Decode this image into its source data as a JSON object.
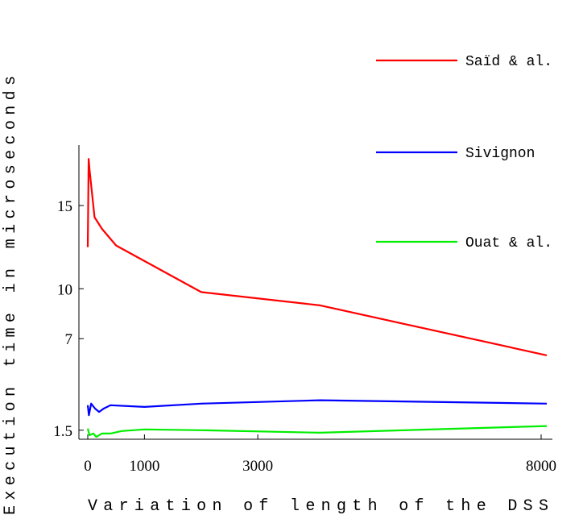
{
  "chart_data": {
    "type": "line",
    "xlabel": "Variation of length of the DSS",
    "ylabel": "Execution time in microseconds",
    "x_ticks": [
      0,
      1000,
      3000,
      8000
    ],
    "y_ticks": [
      1.5,
      7,
      10,
      15
    ],
    "xlim": [
      0,
      8100
    ],
    "ylim": [
      0,
      17.5
    ],
    "grid": false,
    "legend_position": "top-right",
    "series": [
      {
        "name": "Saïd & al.",
        "color": "#ff0000",
        "points": [
          [
            0,
            12.5
          ],
          [
            15,
            17.8
          ],
          [
            30,
            17.2
          ],
          [
            120,
            14.3
          ],
          [
            250,
            13.6
          ],
          [
            500,
            12.6
          ],
          [
            2000,
            9.8
          ],
          [
            4100,
            9.0
          ],
          [
            8100,
            6.0
          ]
        ]
      },
      {
        "name": "Sivignon",
        "color": "#0000ff",
        "points": [
          [
            0,
            3.0
          ],
          [
            20,
            2.4
          ],
          [
            60,
            3.1
          ],
          [
            130,
            2.8
          ],
          [
            200,
            2.6
          ],
          [
            280,
            2.8
          ],
          [
            400,
            3.0
          ],
          [
            1000,
            2.9
          ],
          [
            2000,
            3.1
          ],
          [
            4100,
            3.3
          ],
          [
            8100,
            3.1
          ]
        ]
      },
      {
        "name": "Ouat & al.",
        "color": "#00ee00",
        "points": [
          [
            0,
            1.6
          ],
          [
            30,
            1.2
          ],
          [
            100,
            1.3
          ],
          [
            150,
            1.1
          ],
          [
            250,
            1.3
          ],
          [
            400,
            1.3
          ],
          [
            600,
            1.45
          ],
          [
            1000,
            1.55
          ],
          [
            2000,
            1.5
          ],
          [
            4100,
            1.35
          ],
          [
            8100,
            1.75
          ]
        ]
      }
    ]
  }
}
